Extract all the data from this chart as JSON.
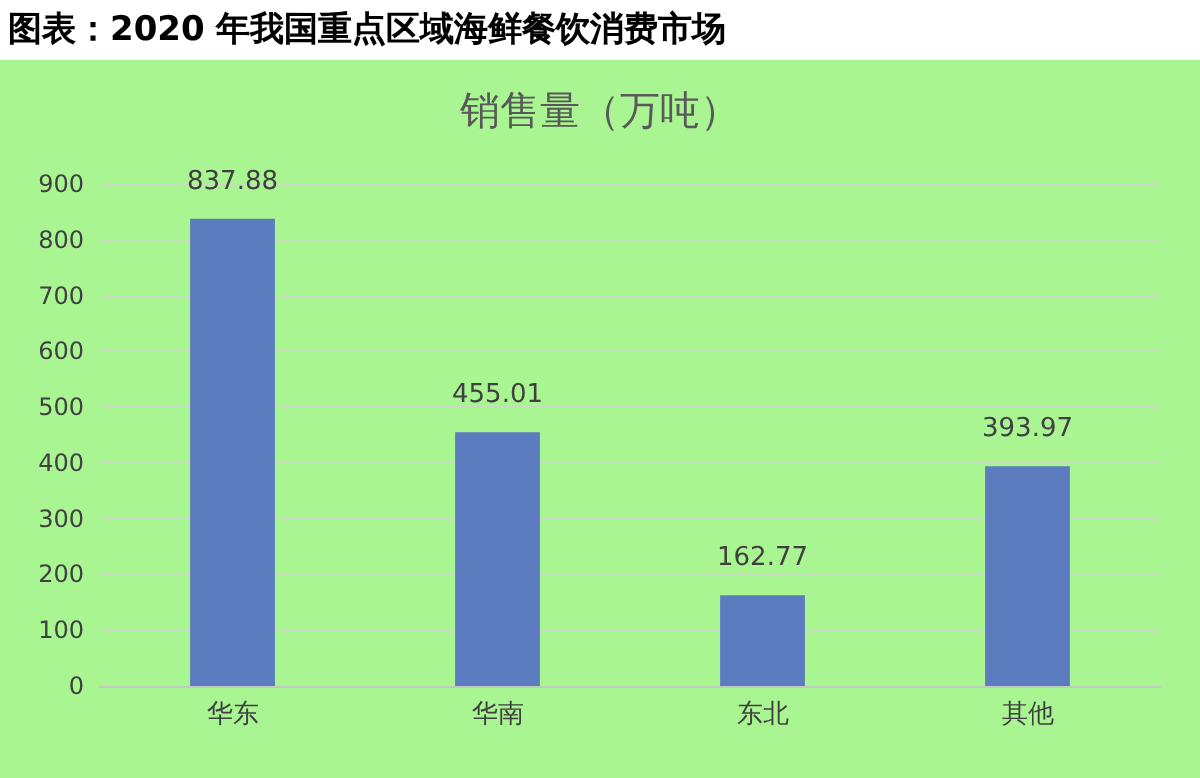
{
  "chart_data": {
    "type": "bar",
    "title": "图表：2020 年我国重点区域海鲜餐饮消费市场",
    "subtitle": "销售量（万吨）",
    "categories": [
      "华东",
      "华南",
      "东北",
      "其他"
    ],
    "values": [
      837.88,
      455.01,
      162.77,
      393.97
    ],
    "color": "#5b7dbf",
    "ylim": [
      0,
      900
    ],
    "yticks": [
      0,
      100,
      200,
      300,
      400,
      500,
      600,
      700,
      800,
      900
    ],
    "grid": "y",
    "data_labels": true
  }
}
